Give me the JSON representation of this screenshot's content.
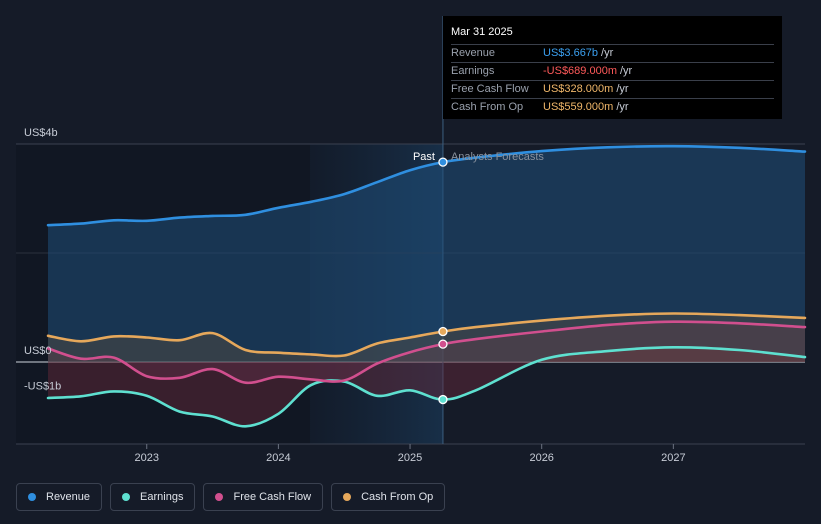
{
  "tooltip": {
    "date": "Mar 31 2025",
    "rows": [
      {
        "label": "Revenue",
        "value": "US$3.667b",
        "unit": "/yr",
        "color": "#3ba0f0"
      },
      {
        "label": "Earnings",
        "value": "-US$689.000m",
        "unit": "/yr",
        "color": "#ff5a5a"
      },
      {
        "label": "Free Cash Flow",
        "value": "US$328.000m",
        "unit": "/yr",
        "color": "#f0b76a"
      },
      {
        "label": "Cash From Op",
        "value": "US$559.000m",
        "unit": "/yr",
        "color": "#f0b76a"
      }
    ]
  },
  "legend": [
    {
      "label": "Revenue",
      "color": "#2f8fe0"
    },
    {
      "label": "Earnings",
      "color": "#5ee0d0"
    },
    {
      "label": "Free Cash Flow",
      "color": "#d14f8e"
    },
    {
      "label": "Cash From Op",
      "color": "#e6a85b"
    }
  ],
  "chart_data": {
    "type": "line",
    "title": "",
    "y_labels": [
      "US$4b",
      "US$0",
      "-US$1b"
    ],
    "x_ticks": [
      "2023",
      "2024",
      "2025",
      "2026",
      "2027"
    ],
    "past_label": "Past",
    "forecast_label": "Analysts Forecasts",
    "ylim": [
      -1.5,
      4.0
    ],
    "xlim": [
      2022.25,
      2028.0
    ],
    "present_x": 2025.25,
    "series": [
      {
        "name": "Revenue",
        "color": "#2f8fe0",
        "points": [
          [
            2022.25,
            2.51
          ],
          [
            2022.5,
            2.54
          ],
          [
            2022.75,
            2.6
          ],
          [
            2023.0,
            2.59
          ],
          [
            2023.25,
            2.65
          ],
          [
            2023.5,
            2.68
          ],
          [
            2023.75,
            2.7
          ],
          [
            2024.0,
            2.83
          ],
          [
            2024.25,
            2.94
          ],
          [
            2024.5,
            3.08
          ],
          [
            2024.75,
            3.3
          ],
          [
            2025.0,
            3.52
          ],
          [
            2025.25,
            3.667
          ],
          [
            2025.5,
            3.75
          ],
          [
            2026.0,
            3.87
          ],
          [
            2026.5,
            3.94
          ],
          [
            2027.0,
            3.96
          ],
          [
            2027.5,
            3.93
          ],
          [
            2028.0,
            3.86
          ]
        ]
      },
      {
        "name": "Earnings",
        "color": "#5ee0d0",
        "points": [
          [
            2022.25,
            -0.66
          ],
          [
            2022.5,
            -0.63
          ],
          [
            2022.75,
            -0.54
          ],
          [
            2023.0,
            -0.62
          ],
          [
            2023.25,
            -0.91
          ],
          [
            2023.5,
            -1.0
          ],
          [
            2023.75,
            -1.18
          ],
          [
            2024.0,
            -0.95
          ],
          [
            2024.25,
            -0.42
          ],
          [
            2024.5,
            -0.36
          ],
          [
            2024.75,
            -0.62
          ],
          [
            2025.0,
            -0.52
          ],
          [
            2025.25,
            -0.689
          ],
          [
            2025.5,
            -0.52
          ],
          [
            2026.0,
            0.04
          ],
          [
            2026.5,
            0.2
          ],
          [
            2027.0,
            0.27
          ],
          [
            2027.5,
            0.22
          ],
          [
            2028.0,
            0.09
          ]
        ]
      },
      {
        "name": "Free Cash Flow",
        "color": "#d14f8e",
        "points": [
          [
            2022.25,
            0.25
          ],
          [
            2022.5,
            0.06
          ],
          [
            2022.75,
            0.08
          ],
          [
            2023.0,
            -0.26
          ],
          [
            2023.25,
            -0.29
          ],
          [
            2023.5,
            -0.13
          ],
          [
            2023.75,
            -0.38
          ],
          [
            2024.0,
            -0.27
          ],
          [
            2024.25,
            -0.32
          ],
          [
            2024.5,
            -0.34
          ],
          [
            2024.75,
            -0.03
          ],
          [
            2025.0,
            0.18
          ],
          [
            2025.25,
            0.328
          ],
          [
            2025.5,
            0.42
          ],
          [
            2026.0,
            0.56
          ],
          [
            2026.5,
            0.68
          ],
          [
            2027.0,
            0.74
          ],
          [
            2027.5,
            0.71
          ],
          [
            2028.0,
            0.64
          ]
        ]
      },
      {
        "name": "Cash From Op",
        "color": "#e6a85b",
        "points": [
          [
            2022.25,
            0.48
          ],
          [
            2022.5,
            0.38
          ],
          [
            2022.75,
            0.47
          ],
          [
            2023.0,
            0.45
          ],
          [
            2023.25,
            0.4
          ],
          [
            2023.5,
            0.53
          ],
          [
            2023.75,
            0.22
          ],
          [
            2024.0,
            0.17
          ],
          [
            2024.25,
            0.14
          ],
          [
            2024.5,
            0.12
          ],
          [
            2024.75,
            0.34
          ],
          [
            2025.0,
            0.45
          ],
          [
            2025.25,
            0.559
          ],
          [
            2025.5,
            0.64
          ],
          [
            2026.0,
            0.76
          ],
          [
            2026.5,
            0.85
          ],
          [
            2027.0,
            0.89
          ],
          [
            2027.5,
            0.86
          ],
          [
            2028.0,
            0.81
          ]
        ]
      }
    ]
  }
}
